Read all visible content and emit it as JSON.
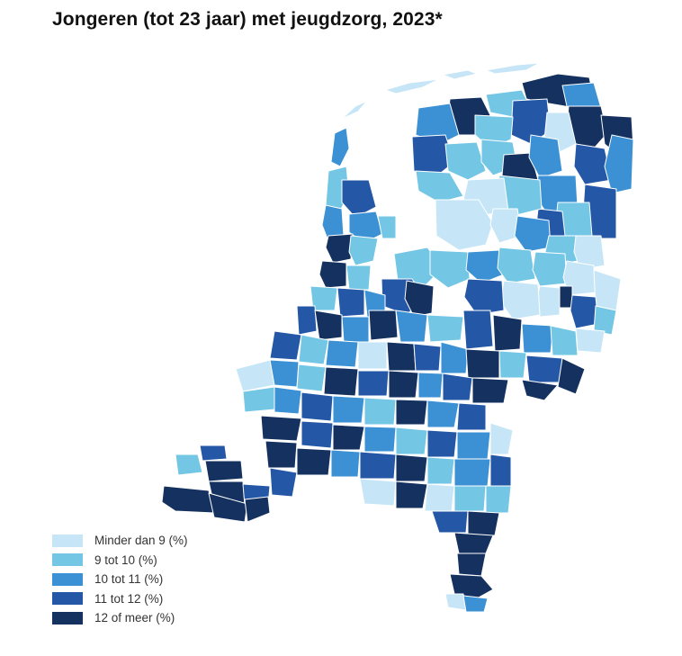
{
  "title": "Jongeren (tot 23 jaar) met jeugdzorg, 2023*",
  "legend": [
    {
      "label": "Minder dan 9 (%)",
      "color": "#c6e6f7"
    },
    {
      "label": "9 tot 10 (%)",
      "color": "#73c6e4"
    },
    {
      "label": "10 tot 11 (%)",
      "color": "#3b91d4"
    },
    {
      "label": "11 tot 12 (%)",
      "color": "#2457a6"
    },
    {
      "label": "12 of meer (%)",
      "color": "#14315f"
    }
  ],
  "map": {
    "region": "Nederland",
    "unit_level": "gemeenten",
    "classes": [
      "Minder dan 9 (%)",
      "9 tot 10 (%)",
      "10 tot 11 (%)",
      "11 tot 12 (%)",
      "12 of meer (%)"
    ]
  }
}
